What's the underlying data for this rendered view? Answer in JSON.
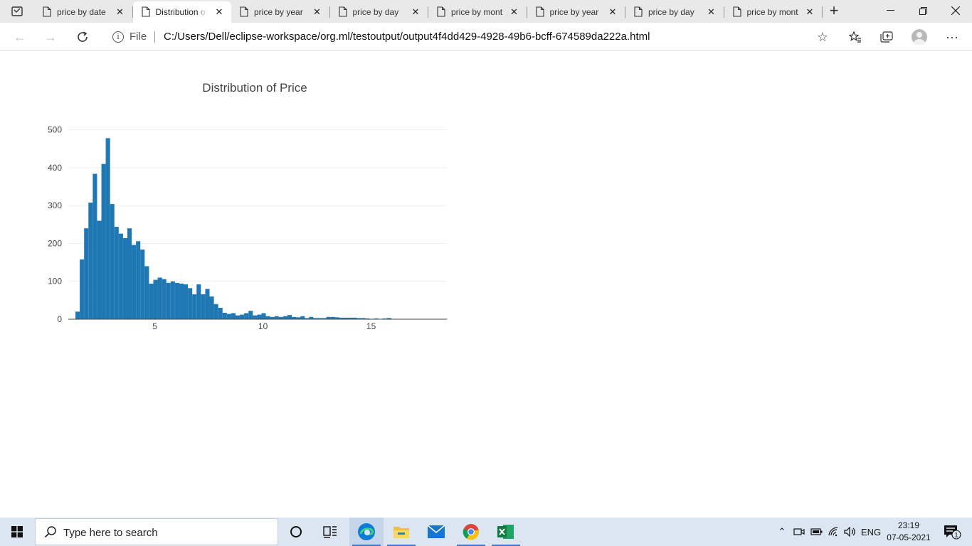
{
  "browser": {
    "tabs": [
      {
        "label": "price by date",
        "active": false
      },
      {
        "label": "Distribution of Price",
        "active": true
      },
      {
        "label": "price by year",
        "active": false
      },
      {
        "label": "price by day",
        "active": false
      },
      {
        "label": "price by month",
        "active": false
      },
      {
        "label": "price by year",
        "active": false
      },
      {
        "label": "price by day",
        "active": false
      },
      {
        "label": "price by month",
        "active": false
      }
    ],
    "address": {
      "scheme_label": "File",
      "url": "C:/Users/Dell/eclipse-workspace/org.ml/testoutput/output4f4dd429-4928-49b6-bcff-674589da222a.html"
    },
    "icons": {
      "back": "back-arrow-icon",
      "forward": "forward-arrow-icon",
      "refresh": "refresh-icon",
      "info": "info-icon",
      "add_favorite": "star-add-icon",
      "favorites": "favorites-icon",
      "collections": "collections-icon",
      "profile": "profile-icon",
      "menu": "more-icon"
    }
  },
  "chart_data": {
    "type": "bar",
    "title": "Distribution of Price",
    "xlabel": "",
    "ylabel": "",
    "color": "#1f77b4",
    "bin_start": 1.33,
    "bin_width": 0.2,
    "values": [
      20,
      158,
      240,
      308,
      384,
      260,
      410,
      478,
      304,
      244,
      226,
      214,
      240,
      196,
      206,
      184,
      140,
      94,
      104,
      110,
      106,
      96,
      100,
      96,
      94,
      92,
      82,
      66,
      92,
      66,
      80,
      60,
      40,
      30,
      17,
      14,
      16,
      10,
      12,
      16,
      22,
      10,
      12,
      16,
      8,
      6,
      8,
      6,
      8,
      11,
      6,
      5,
      8,
      3,
      6,
      3,
      3,
      3,
      6,
      6,
      5,
      4,
      4,
      4,
      4,
      3,
      3,
      2,
      1,
      2,
      1,
      2,
      3,
      1,
      1,
      1,
      1,
      1,
      1,
      1,
      1,
      1,
      1,
      1,
      1,
      1
    ],
    "xlim": [
      1.0,
      18.5
    ],
    "ylim": [
      0,
      520
    ],
    "xticks": [
      5,
      10,
      15
    ],
    "yticks": [
      0,
      100,
      200,
      300,
      400,
      500
    ],
    "grid": "horizontal"
  },
  "taskbar": {
    "search_placeholder": "Type here to search",
    "apps": [
      {
        "name": "cortana-icon",
        "running": false
      },
      {
        "name": "task-view-icon",
        "running": false
      },
      {
        "name": "edge-icon",
        "running": true
      },
      {
        "name": "file-explorer-icon",
        "running": true
      },
      {
        "name": "mail-icon",
        "running": false
      },
      {
        "name": "chrome-icon",
        "running": true
      },
      {
        "name": "excel-icon",
        "running": true
      }
    ],
    "tray": {
      "language": "ENG",
      "time": "23:19",
      "date": "07-05-2021",
      "notification_count": "1"
    }
  }
}
